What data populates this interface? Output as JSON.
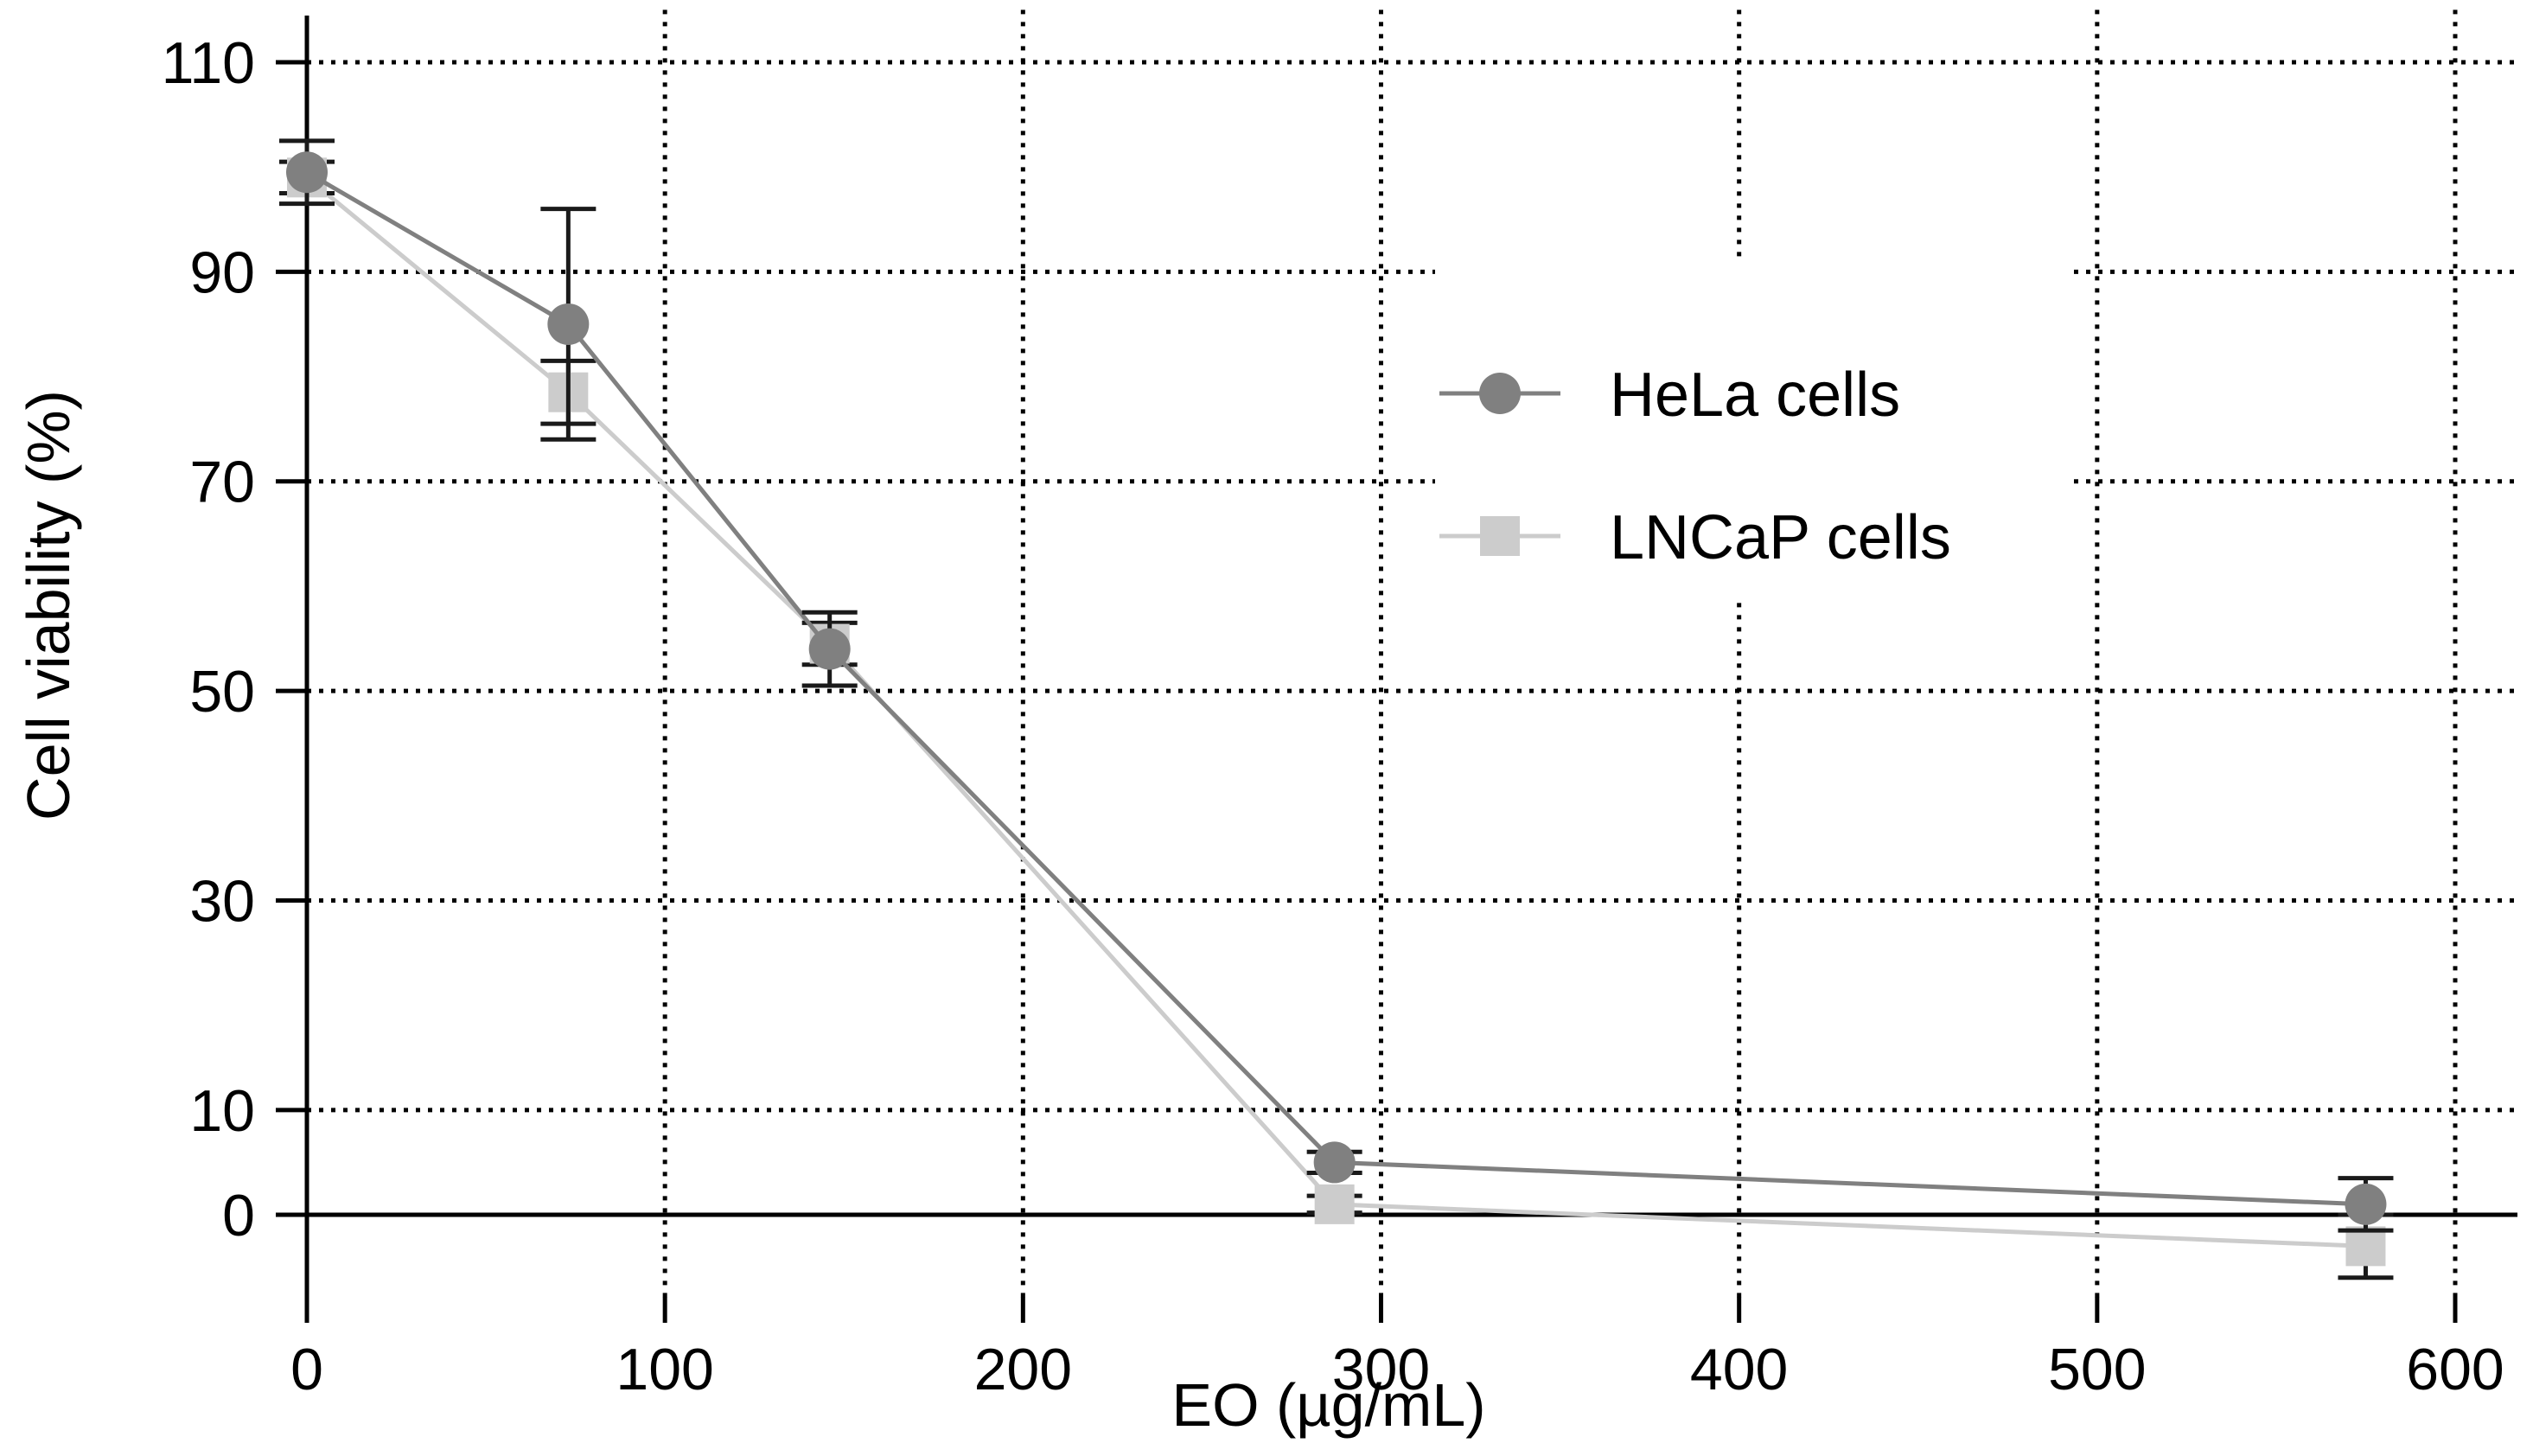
{
  "chart_data": {
    "type": "line",
    "title": "",
    "xlabel": "EO (µg/mL)",
    "ylabel": "Cell viability (%)",
    "xlim": [
      -10,
      620
    ],
    "ylim": [
      -8,
      115
    ],
    "xticks": [
      0,
      100,
      200,
      300,
      400,
      500,
      600
    ],
    "yticks": [
      0,
      10,
      30,
      50,
      70,
      90,
      110
    ],
    "grid": true,
    "legend_position": "top-right",
    "series": [
      {
        "name": "HeLa cells",
        "color": "#808080",
        "marker": "circle",
        "x": [
          0,
          73,
          146,
          287,
          575
        ],
        "y": [
          99.5,
          85,
          54,
          5,
          1
        ],
        "error": [
          3,
          11,
          3.5,
          1,
          2.5
        ]
      },
      {
        "name": "LNCaP cells",
        "color": "#cccccc",
        "marker": "square",
        "x": [
          0,
          73,
          146,
          287,
          575
        ],
        "y": [
          99,
          78.5,
          54.5,
          1,
          -3
        ],
        "error": [
          1.5,
          3,
          2,
          0.8,
          3
        ]
      }
    ]
  }
}
